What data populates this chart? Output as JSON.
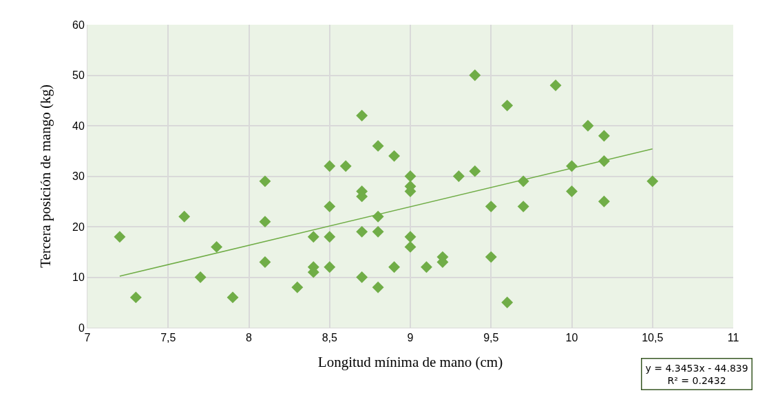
{
  "chart_data": {
    "type": "scatter",
    "xlabel": "Longitud mínima de mano (cm)",
    "ylabel": "Tercera posición de mango (kg)",
    "xlim": [
      7,
      11
    ],
    "xticks": [
      7,
      {
        "value": 7.5,
        "label": "7,5"
      },
      8,
      {
        "value": 8.5,
        "label": "8,5"
      },
      9,
      {
        "value": 9.5,
        "label": "9,5"
      },
      10,
      {
        "value": 10.5,
        "label": "10,5"
      },
      11
    ],
    "ylim": [
      0,
      60
    ],
    "yticks": [
      0,
      10,
      20,
      30,
      40,
      50,
      60
    ],
    "grid": true,
    "series": [
      {
        "marker": "diamond",
        "color": "#70ad47",
        "x": [
          7.2,
          7.3,
          7.6,
          7.7,
          7.8,
          7.9,
          8.1,
          8.1,
          8.1,
          8.3,
          8.4,
          8.4,
          8.4,
          8.5,
          8.5,
          8.5,
          8.5,
          8.6,
          8.7,
          8.7,
          8.7,
          8.7,
          8.7,
          8.8,
          8.8,
          8.8,
          8.8,
          8.9,
          8.9,
          9.0,
          9.0,
          9.0,
          9.0,
          9.0,
          9.1,
          9.2,
          9.2,
          9.3,
          9.4,
          9.4,
          9.5,
          9.5,
          9.6,
          9.6,
          9.7,
          9.7,
          9.9,
          10.0,
          10.0,
          10.1,
          10.2,
          10.2,
          10.2,
          10.5
        ],
        "values": [
          18,
          6,
          22,
          10,
          16,
          6,
          29,
          21,
          13,
          8,
          18,
          12,
          11,
          32,
          24,
          18,
          12,
          32,
          42,
          27,
          26,
          19,
          10,
          36,
          22,
          19,
          8,
          34,
          12,
          30,
          28,
          27,
          18,
          16,
          12,
          14,
          13,
          30,
          50,
          31,
          24,
          14,
          44,
          5,
          29,
          24,
          48,
          32,
          27,
          40,
          38,
          33,
          25,
          29
        ]
      },
      {
        "type": "line",
        "color": "#70ad47",
        "x": [
          7.2,
          10.5
        ],
        "values": [
          10.2,
          35.4
        ]
      }
    ],
    "annotations": [
      "y = 4.3453x - 44.839\nR² = 0.2432"
    ]
  }
}
